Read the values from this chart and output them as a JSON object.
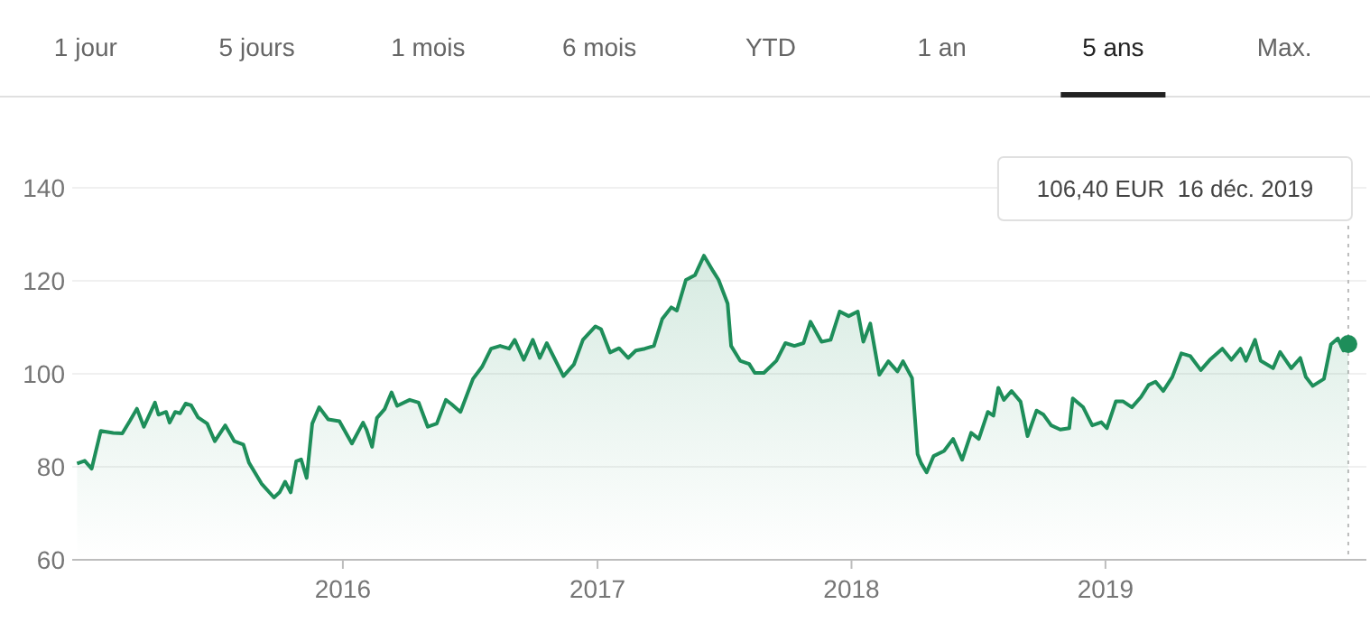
{
  "chart_data": {
    "type": "area",
    "color": "#1e8e5a",
    "annotations": [
      "1 jour",
      "5 jours",
      "1 mois",
      "6 mois",
      "YTD",
      "1 an",
      "5 ans",
      "Max.",
      "106,40 EUR  16 déc. 2019"
    ],
    "x": [
      "2014-12-15",
      "2014-12-26",
      "2015-01-05",
      "2015-01-18",
      "2015-02-05",
      "2015-02-18",
      "2015-03-01",
      "2015-03-11",
      "2015-03-21",
      "2015-04-06",
      "2015-04-11",
      "2015-04-22",
      "2015-04-27",
      "2015-05-05",
      "2015-05-12",
      "2015-05-20",
      "2015-05-28",
      "2015-06-07",
      "2015-06-20",
      "2015-07-01",
      "2015-07-16",
      "2015-07-29",
      "2015-08-11",
      "2015-08-19",
      "2015-09-06",
      "2015-09-24",
      "2015-10-02",
      "2015-10-10",
      "2015-10-18",
      "2015-10-26",
      "2015-11-02",
      "2015-11-10",
      "2015-11-18",
      "2015-11-28",
      "2015-12-11",
      "2015-12-27",
      "2016-01-14",
      "2016-01-30",
      "2016-02-04",
      "2016-02-12",
      "2016-02-19",
      "2016-03-01",
      "2016-03-11",
      "2016-03-19",
      "2016-04-06",
      "2016-04-19",
      "2016-05-02",
      "2016-05-15",
      "2016-05-28",
      "2016-06-05",
      "2016-06-18",
      "2016-07-06",
      "2016-07-19",
      "2016-08-01",
      "2016-08-14",
      "2016-08-27",
      "2016-09-04",
      "2016-09-17",
      "2016-09-30",
      "2016-10-10",
      "2016-10-20",
      "2016-11-13",
      "2016-11-28",
      "2016-12-11",
      "2016-12-29",
      "2017-01-06",
      "2017-01-19",
      "2017-02-01",
      "2017-02-14",
      "2017-02-25",
      "2017-03-10",
      "2017-03-23",
      "2017-04-04",
      "2017-04-17",
      "2017-04-25",
      "2017-05-08",
      "2017-05-21",
      "2017-06-03",
      "2017-06-16",
      "2017-06-24",
      "2017-07-07",
      "2017-07-12",
      "2017-07-25",
      "2017-08-07",
      "2017-08-15",
      "2017-08-28",
      "2017-09-15",
      "2017-09-28",
      "2017-10-11",
      "2017-10-24",
      "2017-11-03",
      "2017-11-19",
      "2017-12-02",
      "2017-12-15",
      "2017-12-28",
      "2018-01-10",
      "2018-01-18",
      "2018-01-28",
      "2018-02-10",
      "2018-02-23",
      "2018-03-08",
      "2018-03-16",
      "2018-03-29",
      "2018-04-06",
      "2018-04-11",
      "2018-04-19",
      "2018-04-29",
      "2018-05-14",
      "2018-05-27",
      "2018-06-09",
      "2018-06-22",
      "2018-07-03",
      "2018-07-16",
      "2018-07-24",
      "2018-07-31",
      "2018-08-08",
      "2018-08-19",
      "2018-09-01",
      "2018-09-11",
      "2018-09-24",
      "2018-10-04",
      "2018-10-15",
      "2018-10-28",
      "2018-11-10",
      "2018-11-15",
      "2018-11-30",
      "2018-12-13",
      "2018-12-26",
      "2019-01-03",
      "2019-01-16",
      "2019-01-26",
      "2019-02-08",
      "2019-02-21",
      "2019-03-04",
      "2019-03-14",
      "2019-03-25",
      "2019-04-07",
      "2019-04-20",
      "2019-05-03",
      "2019-05-18",
      "2019-05-31",
      "2019-06-18",
      "2019-07-01",
      "2019-07-14",
      "2019-07-22",
      "2019-08-04",
      "2019-08-12",
      "2019-08-30",
      "2019-09-09",
      "2019-09-25",
      "2019-10-08",
      "2019-10-16",
      "2019-10-26",
      "2019-11-11",
      "2019-11-21",
      "2019-12-01",
      "2019-12-09",
      "2019-12-16"
    ],
    "values": [
      80.7,
      81.3,
      79.6,
      87.7,
      87.3,
      87.2,
      89.9,
      92.5,
      88.6,
      93.8,
      91.2,
      91.8,
      89.5,
      91.8,
      91.5,
      93.6,
      93.2,
      90.6,
      89.3,
      85.5,
      88.9,
      85.5,
      84.8,
      80.9,
      76.4,
      73.4,
      74.5,
      76.8,
      74.5,
      81.2,
      81.6,
      77.6,
      89.3,
      92.8,
      90.2,
      89.8,
      85,
      89.5,
      88,
      84.3,
      90.5,
      92.4,
      96,
      93.1,
      94.4,
      93.8,
      88.6,
      89.3,
      94.4,
      93.5,
      91.8,
      98.9,
      101.5,
      105.4,
      106,
      105.4,
      107.3,
      103,
      107.3,
      103.4,
      106.6,
      99.5,
      102,
      107.3,
      110.2,
      109.6,
      104.6,
      105.5,
      103.4,
      105,
      105.4,
      106,
      111.8,
      114.3,
      113.6,
      120.2,
      121.2,
      125.4,
      122.1,
      120.2,
      115.1,
      106,
      102.8,
      102.1,
      100.2,
      100.2,
      102.8,
      106.6,
      106,
      106.6,
      111.2,
      106.9,
      107.3,
      113.4,
      112.4,
      113.4,
      106.9,
      110.8,
      99.8,
      102.7,
      100.5,
      102.7,
      99.1,
      82.7,
      80.8,
      78.8,
      82.3,
      83.4,
      86,
      81.5,
      87.3,
      86,
      91.8,
      91,
      97,
      94.4,
      96.3,
      94,
      86.6,
      92.1,
      91.2,
      88.9,
      88,
      88.3,
      94.7,
      92.8,
      88.9,
      89.6,
      88.3,
      94.1,
      94.1,
      92.8,
      95,
      97.6,
      98.3,
      96.3,
      99.3,
      104.4,
      103.8,
      100.8,
      103,
      105.4,
      103,
      105.4,
      102.8,
      107.3,
      102.8,
      101.2,
      104.7,
      101.2,
      103.4,
      99.3,
      97.4,
      98.9,
      106.3,
      107.6,
      105,
      106.4
    ],
    "xlim": [
      "2014-12-08",
      "2020-01-11"
    ],
    "xticks": [
      "2016",
      "2017",
      "2018",
      "2019"
    ],
    "ylim": [
      60,
      140
    ],
    "yticks": [
      60,
      80,
      100,
      120,
      140
    ],
    "grid": "y",
    "ref_lines": [
      {
        "axis": "x",
        "value": "2019-12-16",
        "line_style": "dotted",
        "color": "#bdbdbd"
      }
    ]
  }
}
